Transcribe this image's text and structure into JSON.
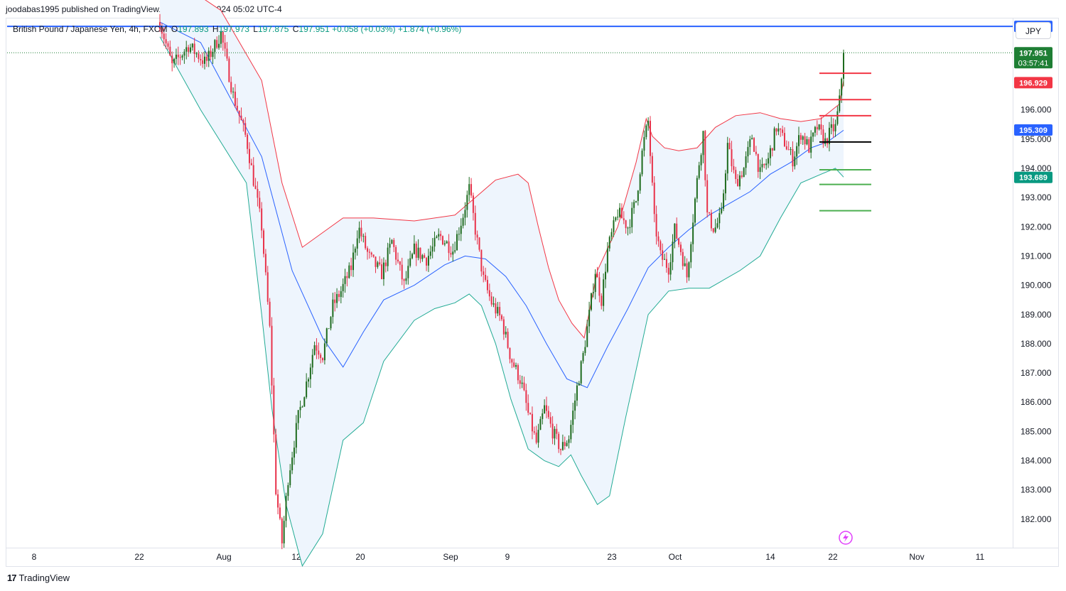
{
  "publisher": "joodabas1995 published on TradingView.com, Oct 23, 2024 05:02 UTC-4",
  "legend": {
    "symbol": "British Pound / Japanese Yen, 4h, FXCM",
    "open_label": "O",
    "open": "197.893",
    "high_label": "H",
    "high": "197.973",
    "low_label": "L",
    "low": "197.875",
    "close_label": "C",
    "close": "197.951",
    "change": "+0.058 (+0.03%)",
    "change2": "+1.874 (+0.96%)"
  },
  "currency": "JPY",
  "brand": "TradingView",
  "brand_logo": "17",
  "colors": {
    "up": "#089981",
    "up_candle": "#1e6b1e",
    "down_candle": "#e8324a",
    "bb_upper": "#f23645",
    "bb_lower": "#22ab94",
    "bb_basis": "#2962ff",
    "bb_fill": "#eef5fd",
    "hline": "#2962ff",
    "resistance": "#f23645",
    "support": "#4caf50",
    "pivot": "#000000"
  },
  "chart_data": {
    "type": "candlestick",
    "title": "British Pound / Japanese Yen, 4h, FXCM",
    "y_axis": {
      "ticks": [
        182,
        183,
        184,
        185,
        186,
        187,
        188,
        189,
        190,
        191,
        192,
        193,
        194,
        195,
        196
      ],
      "range": [
        181.05,
        199.1
      ],
      "position": "right"
    },
    "x_axis": {
      "labels": [
        "8",
        "22",
        "Aug",
        "12",
        "20",
        "Sep",
        "9",
        "23",
        "Oct",
        "14",
        "22",
        "Nov",
        "11"
      ]
    },
    "price_labels": [
      {
        "value": 198.855,
        "text": "198.855",
        "color": "#2962ff"
      },
      {
        "value": 197.951,
        "text": "197.951",
        "sub": "03:57:41",
        "color": "#1e7e34"
      },
      {
        "value": 196.929,
        "text": "196.929",
        "color": "#f23645"
      },
      {
        "value": 195.309,
        "text": "195.309",
        "color": "#2962ff"
      },
      {
        "value": 193.689,
        "text": "193.689",
        "color": "#089981"
      }
    ],
    "horizontal_line": 198.855,
    "last_price": 197.951,
    "resistance_levels": [
      197.25,
      196.35,
      195.8
    ],
    "pivot_level": 194.9,
    "support_levels": [
      193.95,
      193.45,
      192.55
    ],
    "price_path": [
      [
        0,
        199.0
      ],
      [
        12,
        197.5
      ],
      [
        28,
        198.2
      ],
      [
        45,
        197.6
      ],
      [
        60,
        198.6
      ],
      [
        72,
        196.5
      ],
      [
        85,
        195.0
      ],
      [
        100,
        192.0
      ],
      [
        108,
        188.5
      ],
      [
        114,
        183.0
      ],
      [
        120,
        181.2
      ],
      [
        126,
        183.4
      ],
      [
        136,
        185.5
      ],
      [
        145,
        186.8
      ],
      [
        152,
        188.0
      ],
      [
        160,
        187.6
      ],
      [
        170,
        189.3
      ],
      [
        178,
        189.8
      ],
      [
        188,
        190.6
      ],
      [
        195,
        192.0
      ],
      [
        205,
        191.0
      ],
      [
        218,
        190.4
      ],
      [
        228,
        191.5
      ],
      [
        240,
        190.0
      ],
      [
        250,
        191.2
      ],
      [
        262,
        190.9
      ],
      [
        275,
        191.7
      ],
      [
        288,
        191.2
      ],
      [
        298,
        192.4
      ],
      [
        304,
        193.3
      ],
      [
        310,
        191.9
      ],
      [
        318,
        190.2
      ],
      [
        326,
        189.4
      ],
      [
        336,
        188.8
      ],
      [
        345,
        187.5
      ],
      [
        355,
        186.7
      ],
      [
        362,
        185.6
      ],
      [
        370,
        184.6
      ],
      [
        378,
        185.8
      ],
      [
        386,
        185.0
      ],
      [
        394,
        184.4
      ],
      [
        402,
        184.8
      ],
      [
        410,
        186.5
      ],
      [
        416,
        187.6
      ],
      [
        422,
        189.0
      ],
      [
        428,
        190.5
      ],
      [
        434,
        189.5
      ],
      [
        440,
        191.2
      ],
      [
        450,
        192.5
      ],
      [
        460,
        192.0
      ],
      [
        468,
        192.9
      ],
      [
        475,
        194.8
      ],
      [
        480,
        195.6
      ],
      [
        486,
        192.2
      ],
      [
        492,
        191.0
      ],
      [
        500,
        190.6
      ],
      [
        506,
        191.9
      ],
      [
        512,
        191.2
      ],
      [
        518,
        190.3
      ],
      [
        524,
        192.3
      ],
      [
        530,
        194.2
      ],
      [
        534,
        195.2
      ],
      [
        538,
        192.4
      ],
      [
        545,
        191.9
      ],
      [
        552,
        192.4
      ],
      [
        558,
        194.8
      ],
      [
        566,
        193.5
      ],
      [
        574,
        194.0
      ],
      [
        582,
        195.1
      ],
      [
        590,
        193.8
      ],
      [
        598,
        194.3
      ],
      [
        606,
        195.4
      ],
      [
        614,
        194.9
      ],
      [
        622,
        194.3
      ],
      [
        630,
        195.2
      ],
      [
        638,
        194.7
      ],
      [
        646,
        195.4
      ],
      [
        654,
        194.9
      ],
      [
        660,
        195.3
      ],
      [
        664,
        195.4
      ],
      [
        668,
        196.3
      ],
      [
        672,
        197.95
      ]
    ],
    "bb_upper": [
      [
        0,
        200.8
      ],
      [
        60,
        199.4
      ],
      [
        100,
        197.0
      ],
      [
        120,
        193.5
      ],
      [
        140,
        191.3
      ],
      [
        160,
        191.8
      ],
      [
        180,
        192.3
      ],
      [
        210,
        192.3
      ],
      [
        250,
        192.2
      ],
      [
        290,
        192.4
      ],
      [
        310,
        193.0
      ],
      [
        330,
        193.6
      ],
      [
        352,
        193.8
      ],
      [
        362,
        193.5
      ],
      [
        372,
        192.0
      ],
      [
        382,
        190.6
      ],
      [
        392,
        189.5
      ],
      [
        405,
        188.7
      ],
      [
        417,
        188.2
      ],
      [
        430,
        190.5
      ],
      [
        450,
        192.0
      ],
      [
        468,
        194.2
      ],
      [
        478,
        195.7
      ],
      [
        484,
        195.1
      ],
      [
        496,
        194.7
      ],
      [
        510,
        194.6
      ],
      [
        528,
        194.7
      ],
      [
        546,
        195.4
      ],
      [
        566,
        195.8
      ],
      [
        590,
        195.9
      ],
      [
        610,
        195.7
      ],
      [
        630,
        195.6
      ],
      [
        650,
        195.7
      ],
      [
        668,
        196.2
      ],
      [
        672,
        197.0
      ]
    ],
    "bb_lower": [
      [
        0,
        198.5
      ],
      [
        40,
        196.0
      ],
      [
        85,
        193.5
      ],
      [
        100,
        189.0
      ],
      [
        110,
        185.8
      ],
      [
        124,
        182.5
      ],
      [
        140,
        180.4
      ],
      [
        160,
        181.5
      ],
      [
        180,
        184.7
      ],
      [
        200,
        185.3
      ],
      [
        220,
        187.4
      ],
      [
        250,
        188.8
      ],
      [
        270,
        189.2
      ],
      [
        290,
        189.4
      ],
      [
        304,
        189.7
      ],
      [
        316,
        189.3
      ],
      [
        330,
        188.0
      ],
      [
        345,
        186.1
      ],
      [
        362,
        184.4
      ],
      [
        378,
        184.0
      ],
      [
        392,
        183.8
      ],
      [
        404,
        184.2
      ],
      [
        414,
        183.5
      ],
      [
        430,
        182.5
      ],
      [
        442,
        182.8
      ],
      [
        458,
        185.5
      ],
      [
        470,
        187.4
      ],
      [
        480,
        189.0
      ],
      [
        500,
        189.8
      ],
      [
        520,
        189.9
      ],
      [
        540,
        189.9
      ],
      [
        570,
        190.5
      ],
      [
        590,
        191.0
      ],
      [
        610,
        192.3
      ],
      [
        630,
        193.5
      ],
      [
        650,
        193.8
      ],
      [
        664,
        194.0
      ],
      [
        672,
        193.7
      ]
    ],
    "bb_basis": [
      [
        0,
        199.0
      ],
      [
        40,
        198.3
      ],
      [
        100,
        194.4
      ],
      [
        130,
        190.5
      ],
      [
        160,
        188.2
      ],
      [
        180,
        187.2
      ],
      [
        200,
        188.4
      ],
      [
        220,
        189.5
      ],
      [
        250,
        190.0
      ],
      [
        280,
        190.7
      ],
      [
        300,
        191.0
      ],
      [
        320,
        190.9
      ],
      [
        340,
        190.3
      ],
      [
        360,
        189.3
      ],
      [
        380,
        188.0
      ],
      [
        400,
        186.8
      ],
      [
        420,
        186.5
      ],
      [
        440,
        187.9
      ],
      [
        460,
        189.2
      ],
      [
        480,
        190.6
      ],
      [
        500,
        191.3
      ],
      [
        520,
        191.9
      ],
      [
        540,
        192.4
      ],
      [
        560,
        192.8
      ],
      [
        580,
        193.2
      ],
      [
        600,
        193.8
      ],
      [
        620,
        194.2
      ],
      [
        640,
        194.7
      ],
      [
        656,
        194.9
      ],
      [
        672,
        195.3
      ]
    ]
  }
}
